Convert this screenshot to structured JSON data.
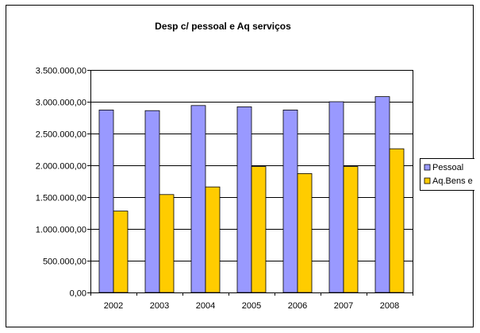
{
  "chart_data": {
    "type": "bar",
    "title": "Desp c/ pessoal e Aq serviços",
    "xlabel": "",
    "ylabel": "",
    "categories": [
      "2002",
      "2003",
      "2004",
      "2005",
      "2006",
      "2007",
      "2008"
    ],
    "series": [
      {
        "name": "Pessoal",
        "color": "#9999ff",
        "values": [
          2870000,
          2860000,
          2940000,
          2920000,
          2870000,
          3000000,
          3080000
        ]
      },
      {
        "name": "Aq.Bens e Serv",
        "color": "#ffcc00",
        "values": [
          1280000,
          1540000,
          1660000,
          1980000,
          1870000,
          1980000,
          2260000
        ]
      }
    ],
    "ylim": [
      0,
      3500000
    ],
    "yticks": [
      0,
      500000,
      1000000,
      1500000,
      2000000,
      2500000,
      3000000,
      3500000
    ],
    "ytick_labels": [
      "0,00",
      "500.000,00",
      "1.000.000,00",
      "1.500.000,00",
      "2.000.000,00",
      "2.500.000,00",
      "3.000.000,00",
      "3.500.000,00"
    ],
    "grid": true,
    "legend_position": "right"
  }
}
